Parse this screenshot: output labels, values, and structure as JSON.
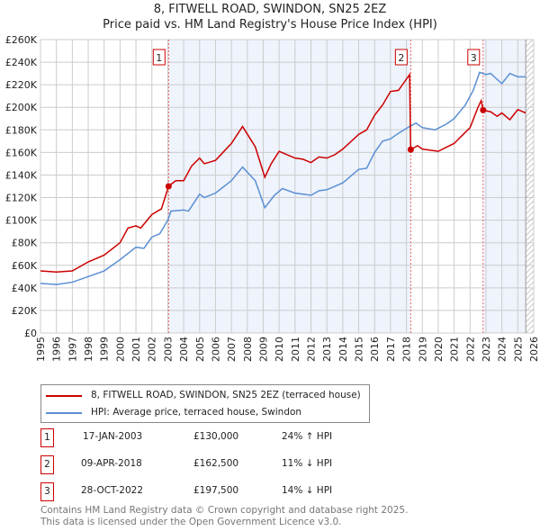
{
  "title": "8, FITWELL ROAD, SWINDON, SN25 2EZ",
  "subtitle": "Price paid vs. HM Land Registry's House Price Index (HPI)",
  "chart_data": {
    "type": "line",
    "title": "8, FITWELL ROAD, SWINDON, SN25 2EZ",
    "subtitle": "Price paid vs. HM Land Registry's House Price Index (HPI)",
    "xlim": [
      1995,
      2026
    ],
    "ylim": [
      0,
      260000
    ],
    "x_ticks": [
      "1995",
      "1996",
      "1997",
      "1998",
      "1999",
      "2000",
      "2001",
      "2002",
      "2003",
      "2004",
      "2005",
      "2006",
      "2007",
      "2008",
      "2009",
      "2010",
      "2011",
      "2012",
      "2013",
      "2014",
      "2015",
      "2016",
      "2017",
      "2018",
      "2019",
      "2020",
      "2021",
      "2022",
      "2023",
      "2024",
      "2025",
      "2026"
    ],
    "y_ticks": [
      "£0",
      "£20K",
      "£40K",
      "£60K",
      "£80K",
      "£100K",
      "£120K",
      "£140K",
      "£160K",
      "£180K",
      "£200K",
      "£220K",
      "£240K",
      "£260K"
    ],
    "grid": true,
    "colors": {
      "price": "#cc0000",
      "hpi": "#5b8fd4",
      "shade": "#eef3fc"
    },
    "series": [
      {
        "name": "8, FITWELL ROAD, SWINDON, SN25 2EZ (terraced house)",
        "x": [
          1995,
          1996,
          1997,
          1997.5,
          1998,
          1999,
          2000,
          2000.5,
          2001,
          2001.3,
          2002,
          2002.6,
          2003.05,
          2003.5,
          2004,
          2004.5,
          2005,
          2005.3,
          2006,
          2007,
          2007.7,
          2008.5,
          2009.1,
          2009.5,
          2010,
          2011,
          2011.5,
          2012,
          2012.5,
          2013,
          2013.5,
          2014,
          2015,
          2015.5,
          2016,
          2016.5,
          2017,
          2017.5,
          2018.1,
          2018.2,
          2018.27,
          2018.7,
          2019,
          2020,
          2021,
          2022,
          2022.5,
          2022.7,
          2022.82,
          2023.3,
          2023.7,
          2024,
          2024.5,
          2025,
          2025.5
        ],
        "values": [
          55000,
          54000,
          55000,
          59000,
          63000,
          69000,
          80000,
          93000,
          95000,
          93000,
          105000,
          110000,
          130000,
          135000,
          135000,
          148000,
          155000,
          150000,
          153000,
          168000,
          183000,
          165000,
          138000,
          150000,
          161000,
          155000,
          154000,
          151000,
          156000,
          155000,
          158000,
          163000,
          176000,
          180000,
          193000,
          202000,
          214000,
          215000,
          227000,
          229000,
          162500,
          166000,
          163000,
          161000,
          168000,
          182000,
          200000,
          206000,
          197500,
          196000,
          192000,
          195000,
          189000,
          198000,
          195000
        ]
      },
      {
        "name": "HPI: Average price, terraced house, Swindon",
        "x": [
          1995,
          1996,
          1997,
          1998,
          1999,
          2000,
          2001,
          2001.5,
          2002,
          2002.5,
          2003,
          2003.2,
          2004,
          2004.3,
          2005,
          2005.3,
          2006,
          2007,
          2007.7,
          2008.5,
          2009.1,
          2009.7,
          2010.2,
          2011,
          2012,
          2012.5,
          2013,
          2014,
          2015,
          2015.5,
          2016,
          2016.5,
          2017,
          2017.5,
          2018.2,
          2018.6,
          2019,
          2019.8,
          2020.5,
          2021,
          2021.7,
          2022.2,
          2022.6,
          2023,
          2023.3,
          2023.6,
          2024,
          2024.5,
          2025,
          2025.5
        ],
        "values": [
          44000,
          43000,
          45000,
          50000,
          55000,
          65000,
          76000,
          75000,
          85000,
          88000,
          100000,
          108000,
          109000,
          108000,
          123000,
          120000,
          124000,
          135000,
          147000,
          135000,
          111000,
          122000,
          128000,
          124000,
          122000,
          126000,
          127000,
          133000,
          145000,
          146000,
          160000,
          170000,
          172000,
          177000,
          183000,
          186000,
          182000,
          180000,
          185000,
          190000,
          202000,
          215000,
          231000,
          229000,
          230000,
          226000,
          221000,
          230000,
          227000,
          227000
        ]
      }
    ],
    "sales": [
      {
        "label": "1",
        "x": 2003.05,
        "value": 130000,
        "date": "17-JAN-2003",
        "price": "£130,000",
        "hpi": "24% ↑ HPI"
      },
      {
        "label": "2",
        "x": 2018.27,
        "value": 162500,
        "date": "09-APR-2018",
        "price": "£162,500",
        "hpi": "11% ↓ HPI"
      },
      {
        "label": "3",
        "x": 2022.82,
        "value": 197500,
        "date": "28-OCT-2022",
        "price": "£197,500",
        "hpi": "14% ↓ HPI"
      }
    ],
    "data_end": 2025.5
  },
  "footer": [
    "Contains HM Land Registry data © Crown copyright and database right 2025.",
    "This data is licensed under the Open Government Licence v3.0."
  ]
}
